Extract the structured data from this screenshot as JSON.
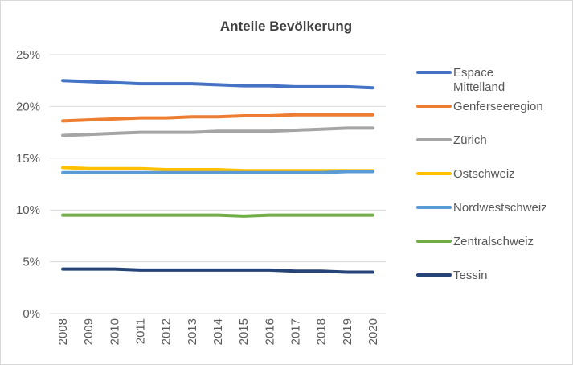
{
  "chart_data": {
    "type": "line",
    "title": "Anteile Bevölkerung",
    "xlabel": "",
    "ylabel": "",
    "x": [
      "2008",
      "2009",
      "2010",
      "2011",
      "2012",
      "2013",
      "2014",
      "2015",
      "2016",
      "2017",
      "2018",
      "2019",
      "2020"
    ],
    "ylim": [
      0,
      25
    ],
    "yticks": [
      "0%",
      "5%",
      "10%",
      "15%",
      "20%",
      "25%"
    ],
    "grid": true,
    "legend_position": "right",
    "series": [
      {
        "name": "Espace Mittelland",
        "legend_lines": [
          "Espace",
          "Mittelland"
        ],
        "color": "#4472c4",
        "values": [
          22.5,
          22.4,
          22.3,
          22.2,
          22.2,
          22.2,
          22.1,
          22.0,
          22.0,
          21.9,
          21.9,
          21.9,
          21.8
        ]
      },
      {
        "name": "Genferseeregion",
        "legend_lines": [
          "Genferseeregion"
        ],
        "color": "#ed7d31",
        "values": [
          18.6,
          18.7,
          18.8,
          18.9,
          18.9,
          19.0,
          19.0,
          19.1,
          19.1,
          19.2,
          19.2,
          19.2,
          19.2
        ]
      },
      {
        "name": "Zürich",
        "legend_lines": [
          "Zürich"
        ],
        "color": "#a5a5a5",
        "values": [
          17.2,
          17.3,
          17.4,
          17.5,
          17.5,
          17.5,
          17.6,
          17.6,
          17.6,
          17.7,
          17.8,
          17.9,
          17.9
        ]
      },
      {
        "name": "Ostschweiz",
        "legend_lines": [
          "Ostschweiz"
        ],
        "color": "#ffc000",
        "values": [
          14.1,
          14.0,
          14.0,
          14.0,
          13.9,
          13.9,
          13.9,
          13.8,
          13.8,
          13.8,
          13.8,
          13.8,
          13.8
        ]
      },
      {
        "name": "Nordwestschweiz",
        "legend_lines": [
          "Nordwestschweiz"
        ],
        "color": "#5b9bd5",
        "values": [
          13.6,
          13.6,
          13.6,
          13.6,
          13.6,
          13.6,
          13.6,
          13.6,
          13.6,
          13.6,
          13.6,
          13.7,
          13.7
        ]
      },
      {
        "name": "Zentralschweiz",
        "legend_lines": [
          "Zentralschweiz"
        ],
        "color": "#70ad47",
        "values": [
          9.5,
          9.5,
          9.5,
          9.5,
          9.5,
          9.5,
          9.5,
          9.4,
          9.5,
          9.5,
          9.5,
          9.5,
          9.5
        ]
      },
      {
        "name": "Tessin",
        "legend_lines": [
          "Tessin"
        ],
        "color": "#264478",
        "values": [
          4.3,
          4.3,
          4.3,
          4.2,
          4.2,
          4.2,
          4.2,
          4.2,
          4.2,
          4.1,
          4.1,
          4.0,
          4.0
        ]
      }
    ]
  }
}
